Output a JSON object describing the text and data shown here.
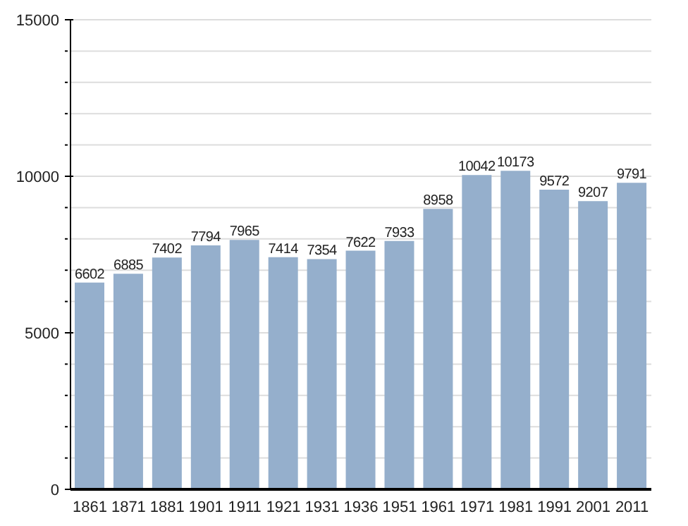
{
  "chart_data": {
    "type": "bar",
    "categories": [
      "1861",
      "1871",
      "1881",
      "1901",
      "1911",
      "1921",
      "1931",
      "1936",
      "1951",
      "1961",
      "1971",
      "1981",
      "1991",
      "2001",
      "2011"
    ],
    "values": [
      6602,
      6885,
      7402,
      7794,
      7965,
      7414,
      7354,
      7622,
      7933,
      8958,
      10042,
      10173,
      9572,
      9207,
      9791
    ],
    "color": "#95afcc",
    "ylim": [
      0,
      15000
    ],
    "yticks": [
      0,
      {
        "value": 1000,
        "label": null
      },
      {
        "value": 2000,
        "label": null
      },
      {
        "value": 3000,
        "label": null
      },
      {
        "value": 4000,
        "label": null
      },
      5000,
      {
        "value": 6000,
        "label": null
      },
      {
        "value": 7000,
        "label": null
      },
      {
        "value": 8000,
        "label": null
      },
      {
        "value": 9000,
        "label": null
      },
      10000,
      {
        "value": 11000,
        "label": null
      },
      {
        "value": 12000,
        "label": null
      },
      {
        "value": 13000,
        "label": null
      },
      {
        "value": 14000,
        "label": null
      },
      15000
    ],
    "grid": "y",
    "data_labels": true
  }
}
